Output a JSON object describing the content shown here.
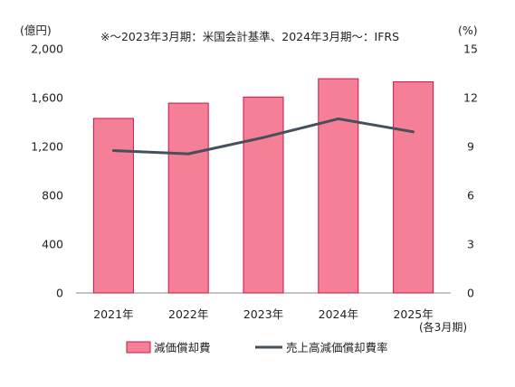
{
  "chart_data": {
    "type": "bar+line",
    "note": "※～2023年3月期：米国会計基準、2024年3月期～：IFRS",
    "categories": [
      "2021年",
      "2022年",
      "2023年",
      "2024年",
      "2025年"
    ],
    "x_note": "(各3月期)",
    "left_axis": {
      "unit": "(億円)",
      "ylim": [
        0,
        2000
      ],
      "ticks": [
        0,
        400,
        800,
        1200,
        1600,
        2000
      ],
      "tick_labels": [
        "0",
        "400",
        "800",
        "1,200",
        "1,600",
        "2,000"
      ]
    },
    "right_axis": {
      "unit": "(%)",
      "ylim": [
        0,
        15
      ],
      "ticks": [
        0,
        3,
        6,
        9,
        12,
        15
      ],
      "tick_labels": [
        "0",
        "3",
        "6",
        "9",
        "12",
        "15"
      ]
    },
    "series": [
      {
        "name": "減価償却費",
        "kind": "bar",
        "axis": "left",
        "color": "#f47f96",
        "edge": "#c8174a",
        "values": [
          1430,
          1555,
          1605,
          1755,
          1730
        ]
      },
      {
        "name": "売上高減価償却費率",
        "kind": "line",
        "axis": "right",
        "color": "#45505a",
        "values": [
          8.75,
          8.55,
          9.55,
          10.7,
          9.9
        ]
      }
    ],
    "grid": false,
    "legend_position": "bottom"
  }
}
